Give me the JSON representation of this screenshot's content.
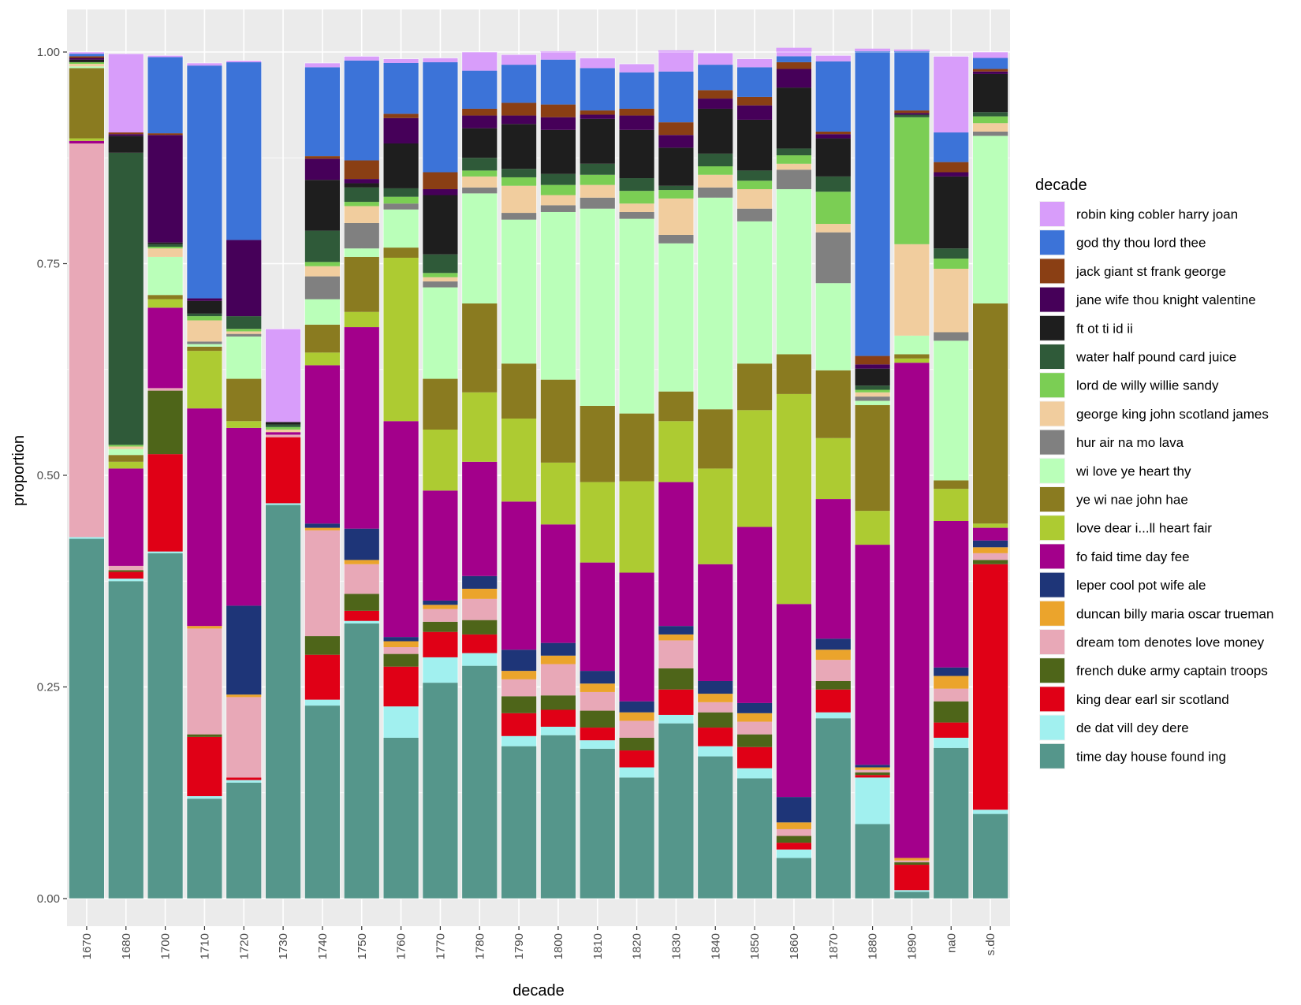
{
  "chart_data": {
    "type": "bar",
    "stacked": true,
    "xlabel": "decade",
    "ylabel": "proportion",
    "ylim": [
      0,
      1
    ],
    "yticks": [
      "0.00",
      "0.25",
      "0.50",
      "0.75",
      "1.00"
    ],
    "legend_title": "decade",
    "legend_position": "right",
    "grid": true,
    "categories": [
      "1670",
      "1680",
      "1700",
      "1710",
      "1720",
      "1730",
      "1740",
      "1750",
      "1760",
      "1770",
      "1780",
      "1790",
      "1800",
      "1810",
      "1820",
      "1830",
      "1840",
      "1850",
      "1860",
      "1870",
      "1880",
      "1890",
      "na0",
      "s.d0"
    ],
    "series": [
      {
        "name": "time day house found ing",
        "color": "#55968b",
        "values": [
          0.425,
          0.375,
          0.408,
          0.118,
          0.137,
          0.465,
          0.228,
          0.325,
          0.19,
          0.255,
          0.275,
          0.18,
          0.193,
          0.177,
          0.143,
          0.207,
          0.168,
          0.142,
          0.048,
          0.213,
          0.088,
          0.008,
          0.178,
          0.1
        ]
      },
      {
        "name": "de dat vill dey dere",
        "color": "#a1f0ef",
        "values": [
          0.002,
          0.003,
          0.002,
          0.003,
          0.003,
          0.002,
          0.007,
          0.003,
          0.037,
          0.03,
          0.015,
          0.012,
          0.01,
          0.01,
          0.012,
          0.01,
          0.012,
          0.012,
          0.01,
          0.007,
          0.055,
          0.002,
          0.012,
          0.005
        ]
      },
      {
        "name": "king dear earl sir scotland",
        "color": "#e00016",
        "values": [
          0.0,
          0.008,
          0.115,
          0.07,
          0.003,
          0.078,
          0.053,
          0.012,
          0.047,
          0.03,
          0.022,
          0.027,
          0.02,
          0.015,
          0.02,
          0.03,
          0.022,
          0.025,
          0.008,
          0.027,
          0.003,
          0.03,
          0.018,
          0.29
        ]
      },
      {
        "name": "french duke army captain troops",
        "color": "#4e6519",
        "values": [
          0.0,
          0.002,
          0.075,
          0.003,
          0.0,
          0.0,
          0.022,
          0.02,
          0.015,
          0.012,
          0.017,
          0.02,
          0.017,
          0.02,
          0.015,
          0.025,
          0.018,
          0.015,
          0.008,
          0.01,
          0.003,
          0.003,
          0.025,
          0.005
        ]
      },
      {
        "name": "dream tom denotes love money",
        "color": "#e8a8b7",
        "values": [
          0.465,
          0.005,
          0.003,
          0.125,
          0.095,
          0.003,
          0.125,
          0.035,
          0.008,
          0.015,
          0.025,
          0.02,
          0.037,
          0.022,
          0.02,
          0.033,
          0.012,
          0.015,
          0.008,
          0.025,
          0.003,
          0.002,
          0.015,
          0.008
        ]
      },
      {
        "name": "duncan billy maria oscar trueman",
        "color": "#eba42c",
        "values": [
          0.0,
          0.0,
          0.0,
          0.003,
          0.003,
          0.0,
          0.003,
          0.005,
          0.007,
          0.005,
          0.012,
          0.01,
          0.01,
          0.01,
          0.01,
          0.007,
          0.01,
          0.01,
          0.008,
          0.012,
          0.003,
          0.003,
          0.015,
          0.007
        ]
      },
      {
        "name": "leper cool pot wife ale",
        "color": "#1e3578",
        "values": [
          0.0,
          0.0,
          0.0,
          0.0,
          0.105,
          0.0,
          0.005,
          0.037,
          0.005,
          0.005,
          0.015,
          0.025,
          0.015,
          0.015,
          0.013,
          0.01,
          0.015,
          0.012,
          0.03,
          0.013,
          0.003,
          0.0,
          0.01,
          0.008
        ]
      },
      {
        "name": "fo faid time day fee",
        "color": "#a3008b",
        "values": [
          0.003,
          0.115,
          0.095,
          0.257,
          0.21,
          0.003,
          0.187,
          0.238,
          0.255,
          0.13,
          0.135,
          0.175,
          0.14,
          0.128,
          0.152,
          0.17,
          0.138,
          0.208,
          0.228,
          0.165,
          0.26,
          0.585,
          0.173,
          0.015
        ]
      },
      {
        "name": "love dear i...ll heart fair",
        "color": "#adcb32",
        "values": [
          0.003,
          0.008,
          0.01,
          0.068,
          0.008,
          0.0,
          0.015,
          0.018,
          0.193,
          0.072,
          0.082,
          0.098,
          0.073,
          0.095,
          0.108,
          0.072,
          0.113,
          0.138,
          0.248,
          0.072,
          0.04,
          0.005,
          0.038,
          0.005
        ]
      },
      {
        "name": "ye wi nae john hae",
        "color": "#8a7b20",
        "values": [
          0.083,
          0.008,
          0.005,
          0.005,
          0.05,
          0.0,
          0.033,
          0.065,
          0.012,
          0.06,
          0.105,
          0.065,
          0.098,
          0.09,
          0.08,
          0.035,
          0.07,
          0.055,
          0.047,
          0.08,
          0.125,
          0.005,
          0.01,
          0.26
        ]
      },
      {
        "name": "wi love ye heart thy",
        "color": "#baffb9",
        "values": [
          0.002,
          0.007,
          0.045,
          0.003,
          0.05,
          0.0,
          0.03,
          0.01,
          0.045,
          0.108,
          0.13,
          0.17,
          0.198,
          0.233,
          0.23,
          0.175,
          0.25,
          0.168,
          0.195,
          0.103,
          0.005,
          0.022,
          0.165,
          0.198
        ]
      },
      {
        "name": "hur air na mo lava",
        "color": "#808080",
        "values": [
          0.0,
          0.0,
          0.0,
          0.003,
          0.003,
          0.0,
          0.027,
          0.03,
          0.007,
          0.007,
          0.007,
          0.008,
          0.008,
          0.013,
          0.008,
          0.01,
          0.012,
          0.015,
          0.023,
          0.06,
          0.005,
          0.0,
          0.01,
          0.005
        ]
      },
      {
        "name": "george king john scotland james",
        "color": "#f1cd9e",
        "values": [
          0.003,
          0.003,
          0.01,
          0.025,
          0.003,
          0.003,
          0.012,
          0.02,
          0.0,
          0.005,
          0.013,
          0.032,
          0.012,
          0.015,
          0.01,
          0.043,
          0.015,
          0.023,
          0.007,
          0.01,
          0.005,
          0.108,
          0.075,
          0.01
        ]
      },
      {
        "name": "lord de willy willie sandy",
        "color": "#7bce54",
        "values": [
          0.002,
          0.002,
          0.002,
          0.005,
          0.003,
          0.003,
          0.005,
          0.005,
          0.008,
          0.005,
          0.007,
          0.01,
          0.012,
          0.012,
          0.015,
          0.01,
          0.01,
          0.01,
          0.01,
          0.038,
          0.003,
          0.15,
          0.012,
          0.008
        ]
      },
      {
        "name": "water half pound card juice",
        "color": "#2f5a39",
        "values": [
          0.0,
          0.345,
          0.003,
          0.003,
          0.015,
          0.003,
          0.037,
          0.017,
          0.01,
          0.022,
          0.015,
          0.01,
          0.013,
          0.013,
          0.015,
          0.005,
          0.015,
          0.012,
          0.008,
          0.018,
          0.005,
          0.003,
          0.012,
          0.005
        ]
      },
      {
        "name": "ft ot ti id ii",
        "color": "#1e1e1e",
        "values": [
          0.003,
          0.02,
          0.002,
          0.015,
          0.0,
          0.003,
          0.06,
          0.005,
          0.053,
          0.07,
          0.035,
          0.053,
          0.052,
          0.053,
          0.057,
          0.045,
          0.053,
          0.06,
          0.072,
          0.045,
          0.02,
          0.0,
          0.085,
          0.045
        ]
      },
      {
        "name": "jane wife thou knight valentine",
        "color": "#460059",
        "values": [
          0.002,
          0.002,
          0.127,
          0.003,
          0.09,
          0.0,
          0.025,
          0.005,
          0.03,
          0.007,
          0.015,
          0.01,
          0.015,
          0.005,
          0.017,
          0.015,
          0.012,
          0.017,
          0.022,
          0.005,
          0.005,
          0.002,
          0.005,
          0.003
        ]
      },
      {
        "name": "jack giant st frank george",
        "color": "#8a3f14",
        "values": [
          0.002,
          0.002,
          0.002,
          0.0,
          0.0,
          0.0,
          0.003,
          0.022,
          0.005,
          0.02,
          0.008,
          0.015,
          0.015,
          0.005,
          0.008,
          0.015,
          0.01,
          0.01,
          0.008,
          0.003,
          0.01,
          0.003,
          0.012,
          0.003
        ]
      },
      {
        "name": "god thy thou lord thee",
        "color": "#3c73d8",
        "values": [
          0.003,
          0.0,
          0.09,
          0.275,
          0.21,
          0.0,
          0.105,
          0.118,
          0.06,
          0.13,
          0.045,
          0.045,
          0.053,
          0.05,
          0.043,
          0.06,
          0.03,
          0.035,
          0.007,
          0.083,
          0.36,
          0.07,
          0.035,
          0.013
        ]
      },
      {
        "name": "robin king cobler harry joan",
        "color": "#d89dfa",
        "values": [
          0.002,
          0.093,
          0.002,
          0.003,
          0.002,
          0.11,
          0.005,
          0.005,
          0.005,
          0.005,
          0.022,
          0.012,
          0.01,
          0.012,
          0.01,
          0.025,
          0.014,
          0.01,
          0.01,
          0.007,
          0.003,
          0.002,
          0.09,
          0.007
        ]
      }
    ]
  }
}
